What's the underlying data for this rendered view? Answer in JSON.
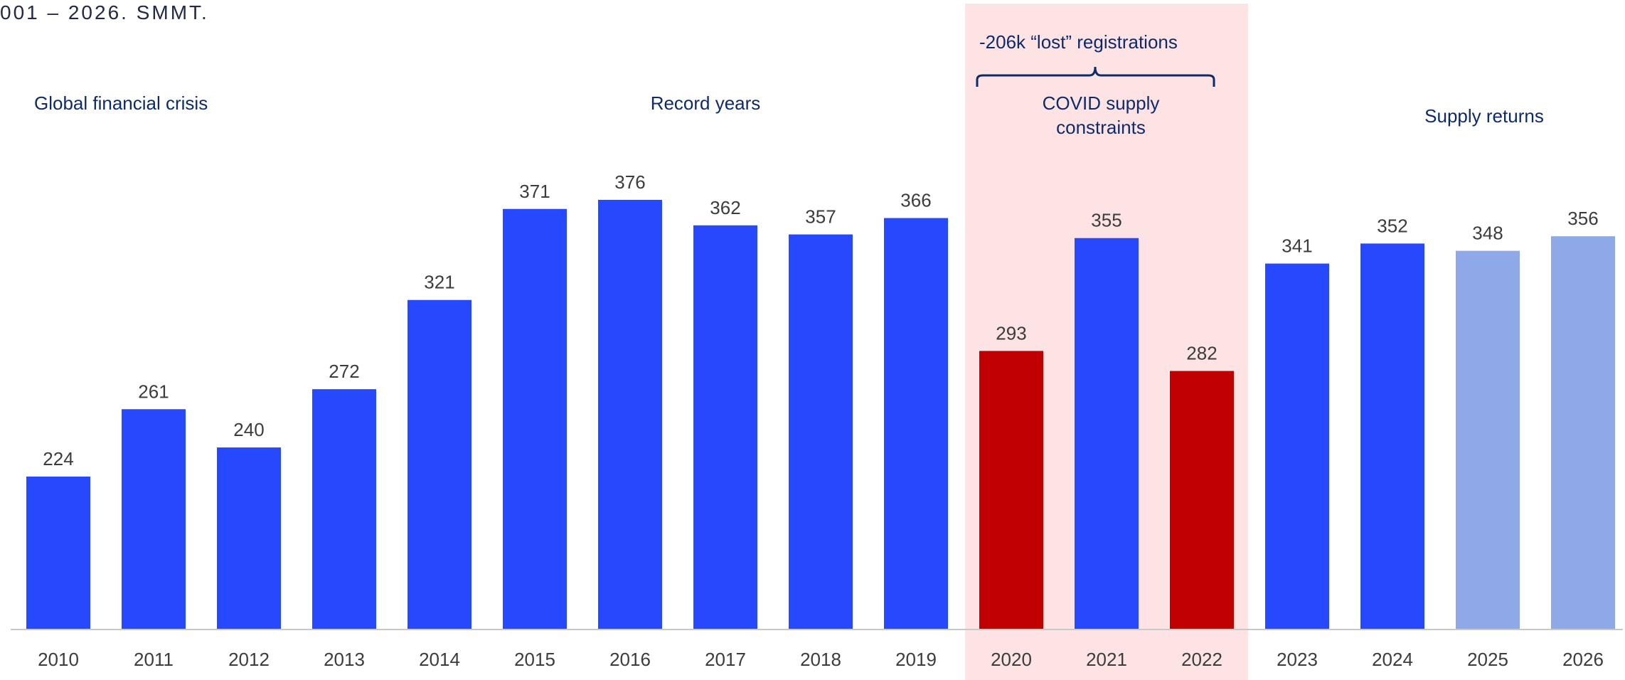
{
  "caption": "001 – 2026. SMMT.",
  "chart_data": {
    "type": "bar",
    "categories": [
      "2010",
      "2011",
      "2012",
      "2013",
      "2014",
      "2015",
      "2016",
      "2017",
      "2018",
      "2019",
      "2020",
      "2021",
      "2022",
      "2023",
      "2024",
      "2025",
      "2026"
    ],
    "values": [
      224,
      261,
      240,
      272,
      321,
      371,
      376,
      362,
      357,
      366,
      293,
      355,
      282,
      341,
      352,
      348,
      356
    ],
    "bar_status": [
      "actual",
      "actual",
      "actual",
      "actual",
      "actual",
      "actual",
      "actual",
      "actual",
      "actual",
      "actual",
      "covid-low",
      "actual",
      "covid-low",
      "actual",
      "actual",
      "forecast",
      "forecast"
    ],
    "colors": {
      "actual": "#2649fd",
      "covid-low": "#c00000",
      "forecast": "#8ea8e8",
      "highlight_band": "#fde3e3",
      "annotation_text": "#0d2b6b",
      "label_text": "#3c3c3c",
      "axis_line": "#c8c8c8"
    },
    "ylim": [
      140,
      392
    ],
    "highlight_range": [
      "2020",
      "2022"
    ],
    "annotations": {
      "global_financial_crisis": "Global financial crisis",
      "record_years": "Record years",
      "lost_registrations": "-206k “lost” registrations",
      "covid_line1": "COVID supply",
      "covid_line2": "constraints",
      "supply_returns": "Supply returns"
    },
    "grid": false,
    "legend": "none"
  }
}
